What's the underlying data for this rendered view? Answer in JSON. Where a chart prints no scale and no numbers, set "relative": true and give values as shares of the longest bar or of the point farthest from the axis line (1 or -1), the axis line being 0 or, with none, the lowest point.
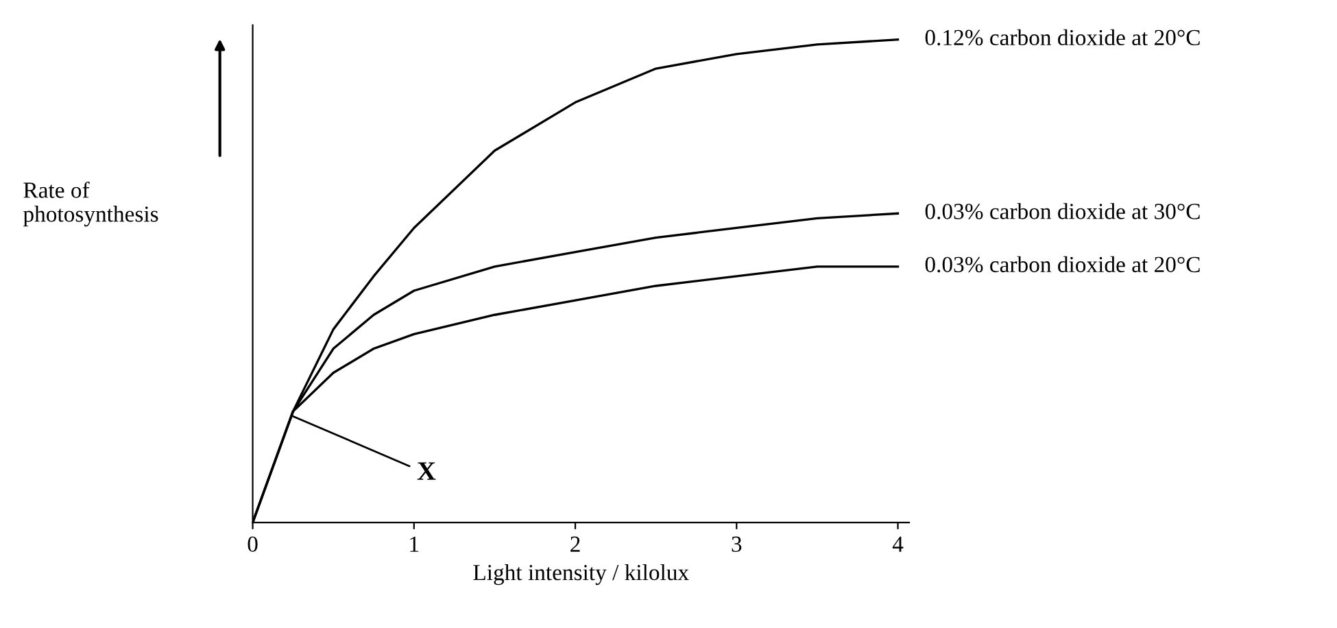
{
  "chart_data": {
    "type": "line",
    "relative": true,
    "xlabel": "Light intensity / kilolux",
    "ylabel": "Rate of\nphotosynthesis",
    "x": [
      0,
      0.25,
      0.5,
      0.75,
      1,
      1.5,
      2,
      2.5,
      3,
      3.5,
      4
    ],
    "xlim": [
      0,
      4.07
    ],
    "xticks": [
      0,
      1,
      2,
      3,
      4
    ],
    "grid": false,
    "legend": false,
    "marker": "none",
    "line_style": "solid",
    "series": [
      {
        "name": "0.12% carbon dioxide at 20°C",
        "color": "#000000",
        "values": [
          0,
          0.23,
          0.4,
          0.51,
          0.61,
          0.77,
          0.87,
          0.94,
          0.97,
          0.99,
          1
        ]
      },
      {
        "name": "0.03% carbon dioxide at 30°C",
        "color": "#000000",
        "values": [
          0,
          0.23,
          0.36,
          0.43,
          0.48,
          0.53,
          0.56,
          0.59,
          0.61,
          0.63,
          0.64
        ]
      },
      {
        "name": "0.03% carbon dioxide at 20°C",
        "color": "#000000",
        "values": [
          0,
          0.23,
          0.31,
          0.36,
          0.39,
          0.43,
          0.46,
          0.49,
          0.51,
          0.53,
          0.53
        ]
      }
    ],
    "annotations": [
      {
        "text": "X",
        "x": 0.25,
        "y": 0.22
      }
    ]
  }
}
